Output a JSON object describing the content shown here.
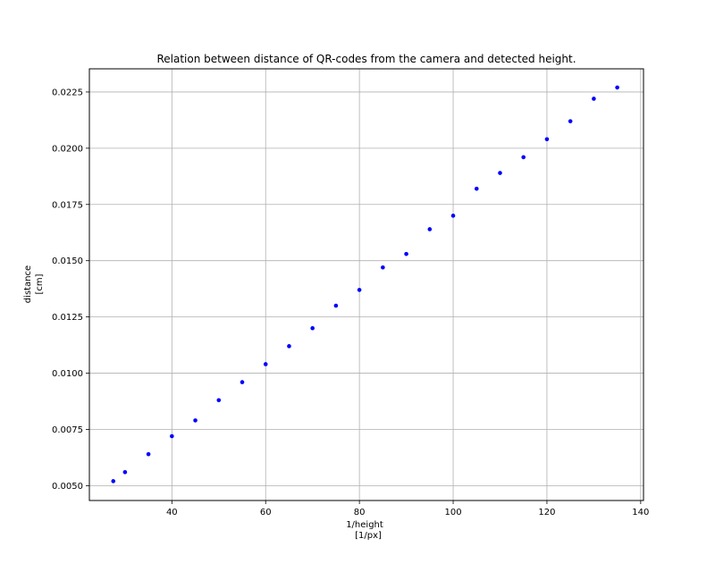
{
  "chart_data": {
    "type": "scatter",
    "title": "Relation between distance of QR-codes from the camera and detected height.",
    "xlabel": [
      "1/height",
      "[1/px]"
    ],
    "ylabel": [
      "distance",
      "[cm]"
    ],
    "xlim": [
      22.4,
      140.6
    ],
    "ylim": [
      0.00434,
      0.02353
    ],
    "xticks": [
      40,
      60,
      80,
      100,
      120,
      140
    ],
    "yticks": [
      0.005,
      0.0075,
      0.01,
      0.0125,
      0.015,
      0.0175,
      0.02,
      0.0225
    ],
    "xtick_labels": [
      "40",
      "60",
      "80",
      "100",
      "120",
      "140"
    ],
    "ytick_labels": [
      "0.0050",
      "0.0075",
      "0.0100",
      "0.0125",
      "0.0150",
      "0.0175",
      "0.0200",
      "0.0225"
    ],
    "grid": true,
    "marker_color": "#0000ff",
    "points": [
      {
        "x": 27.5,
        "y": 0.0052
      },
      {
        "x": 30,
        "y": 0.0056
      },
      {
        "x": 35,
        "y": 0.0064
      },
      {
        "x": 40,
        "y": 0.0072
      },
      {
        "x": 45,
        "y": 0.0079
      },
      {
        "x": 50,
        "y": 0.0088
      },
      {
        "x": 55,
        "y": 0.0096
      },
      {
        "x": 60,
        "y": 0.0104
      },
      {
        "x": 65,
        "y": 0.0112
      },
      {
        "x": 70,
        "y": 0.012
      },
      {
        "x": 75,
        "y": 0.013
      },
      {
        "x": 80,
        "y": 0.0137
      },
      {
        "x": 85,
        "y": 0.0147
      },
      {
        "x": 90,
        "y": 0.0153
      },
      {
        "x": 95,
        "y": 0.0164
      },
      {
        "x": 100,
        "y": 0.017
      },
      {
        "x": 105,
        "y": 0.0182
      },
      {
        "x": 110,
        "y": 0.0189
      },
      {
        "x": 115,
        "y": 0.0196
      },
      {
        "x": 120,
        "y": 0.0204
      },
      {
        "x": 125,
        "y": 0.0212
      },
      {
        "x": 130,
        "y": 0.0222
      },
      {
        "x": 135,
        "y": 0.0227
      }
    ]
  }
}
